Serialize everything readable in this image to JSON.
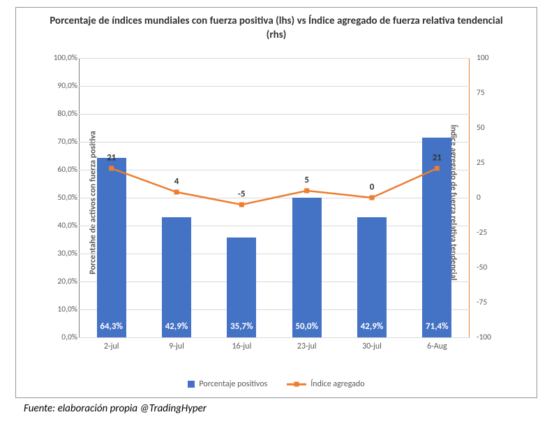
{
  "chart": {
    "title": "Porcentaje de índices mundiales con fuerza positiva (lhs) vs Índice agregado de fuerza relativa tendencial (rhs)",
    "y_left_label": "Porcentahe de activos con fuerza positiva",
    "y_right_label": "Índice agregado de fuerza relativa tendencial",
    "background_color": "#ffffff",
    "border_color": "#969696",
    "grid_color": "#d9d9d9",
    "text_color": "#595959",
    "title_fontsize": 15,
    "axis_label_fontsize": 12,
    "tick_fontsize": 11.5,
    "categories": [
      "2-jul",
      "9-jul",
      "16-jul",
      "23-jul",
      "30-jul",
      "6-Aug"
    ],
    "bar_series": {
      "name": "Porcentaje positivos",
      "color": "#4472c4",
      "values": [
        64.3,
        42.9,
        35.7,
        50.0,
        42.9,
        71.4
      ],
      "labels": [
        "64,3%",
        "42,9%",
        "35,7%",
        "50,0%",
        "42,9%",
        "71,4%"
      ],
      "label_color": "#ffffff",
      "bar_width_ratio": 0.45
    },
    "line_series": {
      "name": "Índice agregado",
      "color": "#ed7d31",
      "values": [
        21,
        4,
        -5,
        5,
        0,
        21
      ],
      "labels": [
        "21",
        "4",
        "-5",
        "5",
        "0",
        "21"
      ],
      "line_width": 2.5,
      "marker_size": 7,
      "marker_shape": "square"
    },
    "y_left": {
      "min": 0,
      "max": 100,
      "ticks": [
        0,
        10,
        20,
        30,
        40,
        50,
        60,
        70,
        80,
        90,
        100
      ],
      "tick_labels": [
        "0,0%",
        "10,0%",
        "20,0%",
        "30,0%",
        "40,0%",
        "50,0%",
        "60,0%",
        "70,0%",
        "80,0%",
        "90,0%",
        "100,0%"
      ]
    },
    "y_right": {
      "min": -100,
      "max": 100,
      "ticks": [
        -100,
        -75,
        -50,
        -25,
        0,
        25,
        50,
        75,
        100
      ],
      "tick_labels": [
        "-100",
        "-75",
        "-50",
        "-25",
        "0",
        "25",
        "50",
        "75",
        "100"
      ],
      "axis_color": "#ed7d31"
    },
    "legend": {
      "bar_label": "Porcentaje positivos",
      "line_label": "Índice agregado"
    }
  },
  "footer": "Fuente: elaboración propia @TradingHyper"
}
